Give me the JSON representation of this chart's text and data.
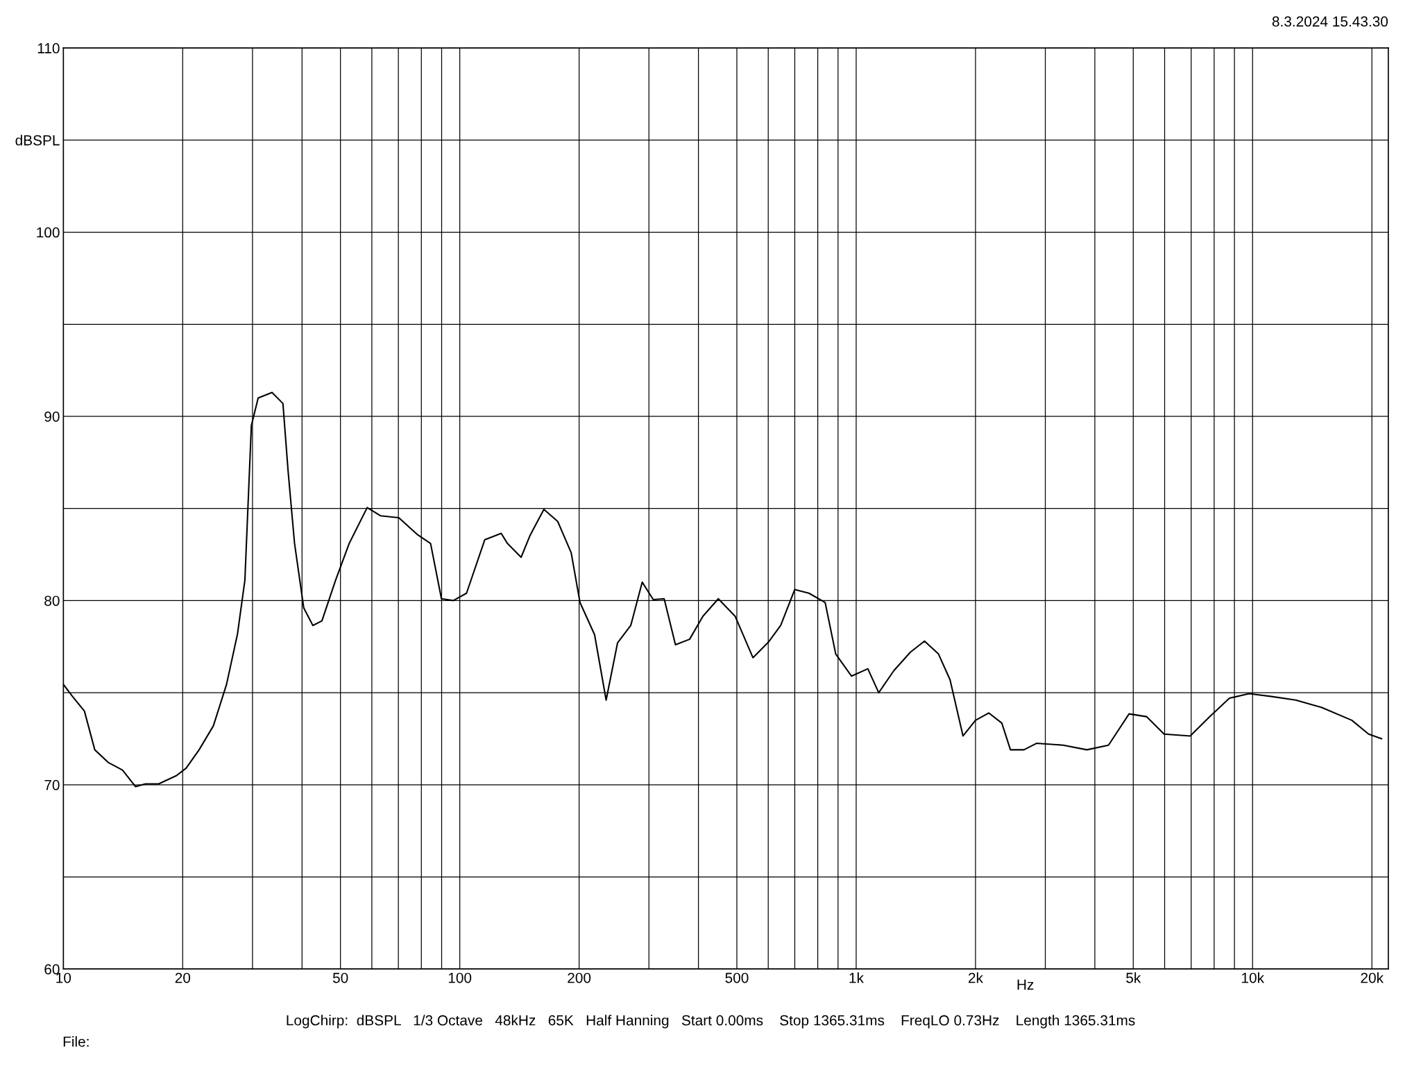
{
  "chart_data": {
    "type": "line",
    "xlabel": "Hz",
    "annotations": [
      "8.3.2024 15.43.30",
      "LogChirp:  dBSPL   1/3 Octave   48kHz   65K   Half Hanning   Start 0.00ms    Stop 1365.31ms    FreqLO 0.73Hz    Length 1365.31ms",
      "File:"
    ],
    "series": [
      {
        "color": "#000000",
        "x": [
          10,
          10.54,
          11.3,
          12.0,
          13.0,
          14.1,
          15.2,
          16.1,
          17.4,
          19.3,
          20.4,
          22.0,
          23.9,
          25.8,
          27.5,
          28.7,
          29.8,
          31.0,
          33.6,
          35.8,
          36.9,
          38.3,
          40.4,
          42.6,
          44.9,
          48.6,
          52.6,
          58.4,
          63.2,
          70.2,
          78.0,
          84.4,
          89.9,
          96.3,
          104,
          115.6,
          127.2,
          131.9,
          142.8,
          150.5,
          163,
          176.6,
          191,
          201,
          218.8,
          234,
          250,
          270,
          288.6,
          307.7,
          327.8,
          350,
          380,
          410.5,
          449,
          495,
          549,
          601,
          645,
          700,
          760,
          835,
          888,
          973,
          1070,
          1140,
          1245,
          1370,
          1487,
          1613,
          1725,
          1860,
          2000,
          2160,
          2330,
          2450,
          2650,
          2850,
          3330,
          3820,
          4330,
          4880,
          5400,
          5980,
          6960,
          7800,
          8740,
          9800,
          11100,
          12850,
          14920,
          17800,
          19620,
          21150
        ],
        "values": [
          75.45,
          74.8,
          74.0,
          71.9,
          71.2,
          70.8,
          69.9,
          70.05,
          70.05,
          70.5,
          70.9,
          71.9,
          73.2,
          75.45,
          78.2,
          81.1,
          89.5,
          91.0,
          91.3,
          90.7,
          87.0,
          83.1,
          79.6,
          78.65,
          78.9,
          81.1,
          83.1,
          85.05,
          84.6,
          84.5,
          83.6,
          83.1,
          80.1,
          80.0,
          80.4,
          83.3,
          83.65,
          83.1,
          82.35,
          83.55,
          84.95,
          84.3,
          82.6,
          79.9,
          78.15,
          74.6,
          77.7,
          78.65,
          81.0,
          80.05,
          80.1,
          77.6,
          77.9,
          79.15,
          80.1,
          79.15,
          76.9,
          77.75,
          78.65,
          80.6,
          80.4,
          79.9,
          77.1,
          75.9,
          76.3,
          75.0,
          76.2,
          77.2,
          77.8,
          77.1,
          75.7,
          72.65,
          73.5,
          73.9,
          73.35,
          71.9,
          71.9,
          72.25,
          72.15,
          71.9,
          72.15,
          73.85,
          73.7,
          72.75,
          72.65,
          73.7,
          74.7,
          74.95,
          74.8,
          74.6,
          74.2,
          73.5,
          72.75,
          72.5
        ]
      }
    ],
    "log": "x",
    "xlim": [
      10,
      22000
    ],
    "xticks": [
      10,
      20,
      {
        "value": 30,
        "label": null
      },
      {
        "value": 40,
        "label": null
      },
      50,
      {
        "value": 60,
        "label": null
      },
      {
        "value": 70,
        "label": null
      },
      {
        "value": 80,
        "label": null
      },
      {
        "value": 90,
        "label": null
      },
      100,
      200,
      {
        "value": 300,
        "label": null
      },
      {
        "value": 400,
        "label": null
      },
      500,
      {
        "value": 600,
        "label": null
      },
      {
        "value": 700,
        "label": null
      },
      {
        "value": 800,
        "label": null
      },
      {
        "value": 900,
        "label": null
      },
      {
        "value": 1000,
        "label": "1k"
      },
      {
        "value": 2000,
        "label": "2k"
      },
      {
        "value": 3000,
        "label": null
      },
      {
        "value": 4000,
        "label": null
      },
      {
        "value": 5000,
        "label": "5k"
      },
      {
        "value": 6000,
        "label": null
      },
      {
        "value": 7000,
        "label": null
      },
      {
        "value": 8000,
        "label": null
      },
      {
        "value": 9000,
        "label": null
      },
      {
        "value": 10000,
        "label": "10k"
      },
      {
        "value": 20000,
        "label": "20k"
      }
    ],
    "ylim": [
      60,
      110
    ],
    "yticks": [
      60,
      {
        "value": 65,
        "label": null
      },
      70,
      {
        "value": 75,
        "label": null
      },
      80,
      {
        "value": 85,
        "label": null
      },
      90,
      {
        "value": 95,
        "label": null
      },
      100,
      {
        "value": 105,
        "label": "dBSPL"
      },
      110
    ],
    "grid": true,
    "line_style": "solid",
    "marker": "none",
    "legend": false
  }
}
